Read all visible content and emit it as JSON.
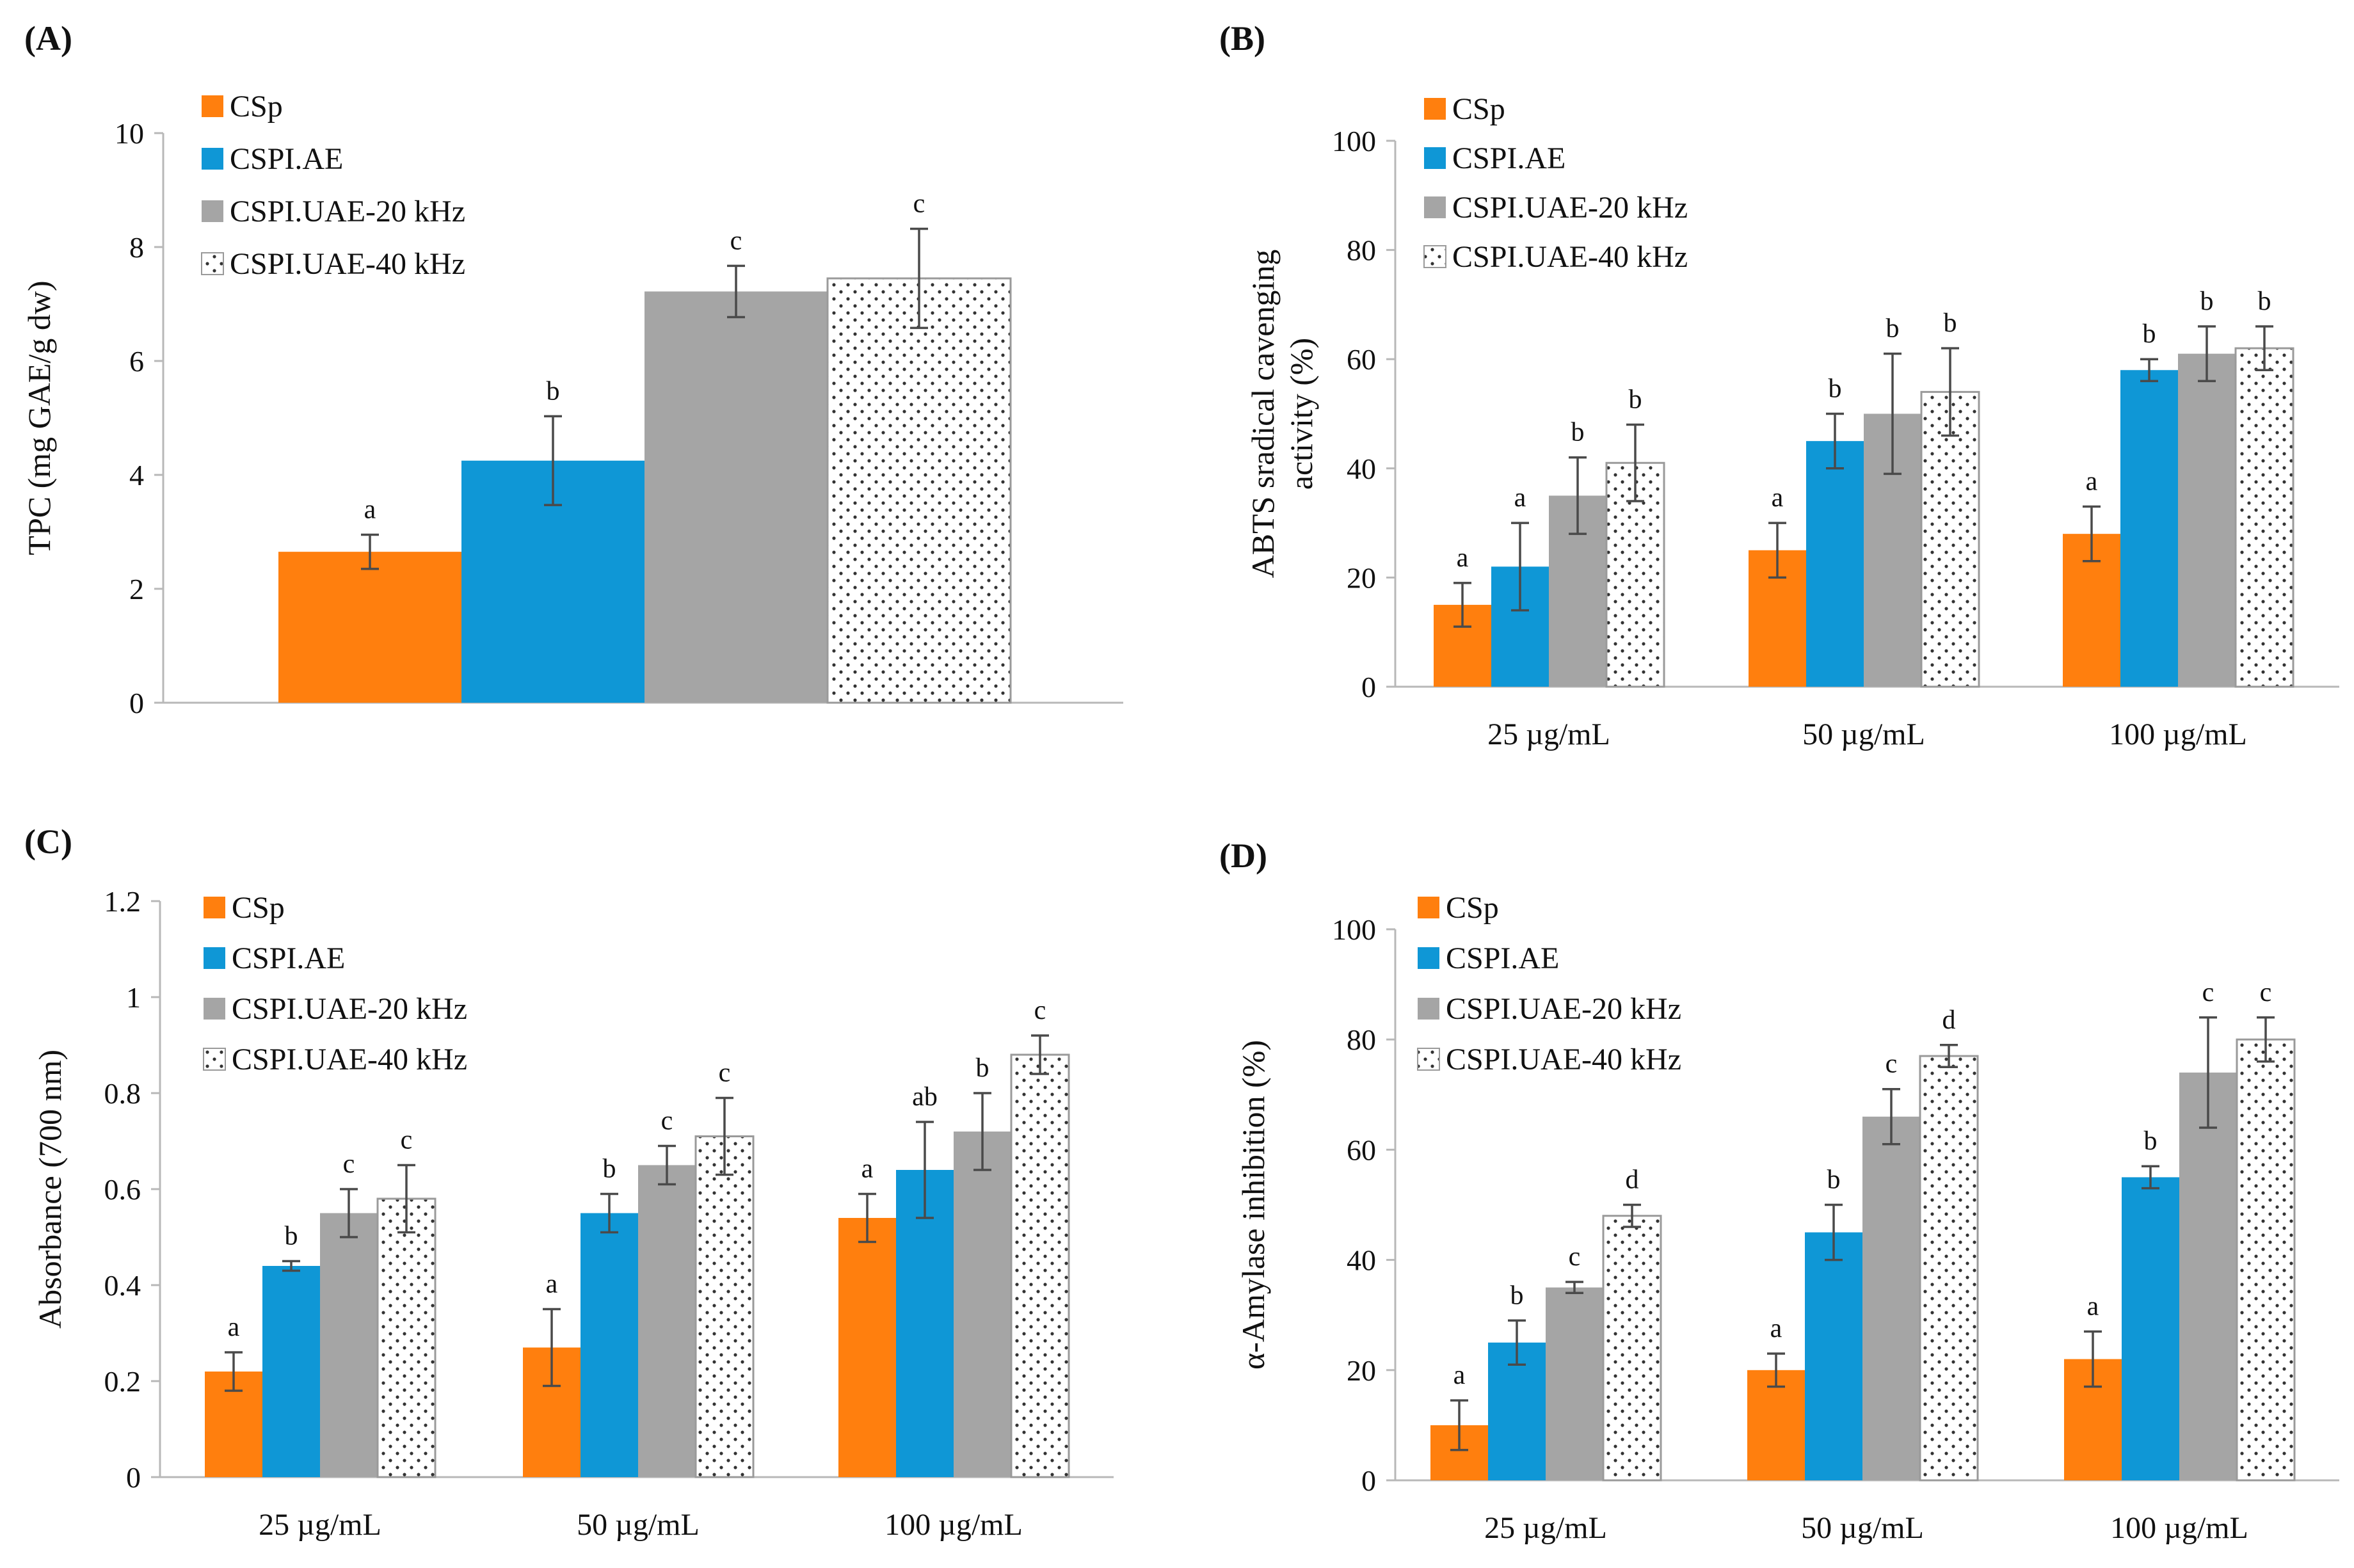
{
  "colors": {
    "CSp": "#FF7F0E",
    "CSPI.AE": "#0F97D6",
    "CSPI.UAE-20 kHz": "#A5A5A5",
    "CSPI.UAE-40 kHz": "#FFFFFF",
    "axis": "#B8B8B8",
    "text": "#111111"
  },
  "chart_data": [
    {
      "panel": "(A)",
      "type": "bar",
      "ylabel": "TPC (mg GAE/g dw)",
      "xlabel": "",
      "ylim": [
        0,
        10
      ],
      "yticks": [
        "0",
        "2",
        "4",
        "6",
        "8",
        "10"
      ],
      "categories": [
        ""
      ],
      "legend_position": "top-left",
      "series": [
        {
          "name": "CSp",
          "values": [
            2.65
          ],
          "errors": [
            0.3
          ],
          "letters": [
            "a"
          ]
        },
        {
          "name": "CSPI.AE",
          "values": [
            4.25
          ],
          "errors": [
            0.78
          ],
          "letters": [
            "b"
          ]
        },
        {
          "name": "CSPI.UAE-20 kHz",
          "values": [
            7.22
          ],
          "errors": [
            0.45
          ],
          "letters": [
            "c"
          ]
        },
        {
          "name": "CSPI.UAE-40 kHz",
          "values": [
            7.45
          ],
          "errors": [
            0.87
          ],
          "letters": [
            "c"
          ]
        }
      ]
    },
    {
      "panel": "(B)",
      "type": "bar",
      "ylabel": "ABTS sradical cavenging activity (%)",
      "xlabel": "",
      "ylim": [
        0,
        100
      ],
      "yticks": [
        "0",
        "20",
        "40",
        "60",
        "80",
        "100"
      ],
      "categories": [
        "25 µg/mL",
        "50 µg/mL",
        "100 µg/mL"
      ],
      "legend_position": "top-left",
      "series": [
        {
          "name": "CSp",
          "values": [
            15,
            25,
            28
          ],
          "errors": [
            4,
            5,
            5
          ],
          "letters": [
            "a",
            "a",
            "a"
          ]
        },
        {
          "name": "CSPI.AE",
          "values": [
            22,
            45,
            58
          ],
          "errors": [
            8,
            5,
            2
          ],
          "letters": [
            "a",
            "b",
            "b"
          ]
        },
        {
          "name": "CSPI.UAE-20 kHz",
          "values": [
            35,
            50,
            61
          ],
          "errors": [
            7,
            11,
            5
          ],
          "letters": [
            "b",
            "b",
            "b"
          ]
        },
        {
          "name": "CSPI.UAE-40 kHz",
          "values": [
            41,
            54,
            62
          ],
          "errors": [
            7,
            8,
            4
          ],
          "letters": [
            "b",
            "b",
            "b"
          ]
        }
      ]
    },
    {
      "panel": "(C)",
      "type": "bar",
      "ylabel": "Absorbance (700 nm)",
      "xlabel": "",
      "ylim": [
        0,
        1.2
      ],
      "yticks": [
        "0",
        "0.2",
        "0.4",
        "0.6",
        "0.8",
        "1",
        "1.2"
      ],
      "categories": [
        "25 µg/mL",
        "50 µg/mL",
        "100 µg/mL"
      ],
      "legend_position": "top-left",
      "series": [
        {
          "name": "CSp",
          "values": [
            0.22,
            0.27,
            0.54
          ],
          "errors": [
            0.04,
            0.08,
            0.05
          ],
          "letters": [
            "a",
            "a",
            "a"
          ]
        },
        {
          "name": "CSPI.AE",
          "values": [
            0.44,
            0.55,
            0.64
          ],
          "errors": [
            0.01,
            0.04,
            0.1
          ],
          "letters": [
            "b",
            "b",
            "ab"
          ]
        },
        {
          "name": "CSPI.UAE-20 kHz",
          "values": [
            0.55,
            0.65,
            0.72
          ],
          "errors": [
            0.05,
            0.04,
            0.08
          ],
          "letters": [
            "c",
            "c",
            "b"
          ]
        },
        {
          "name": "CSPI.UAE-40 kHz",
          "values": [
            0.58,
            0.71,
            0.88
          ],
          "errors": [
            0.07,
            0.08,
            0.04
          ],
          "letters": [
            "c",
            "c",
            "c"
          ]
        }
      ]
    },
    {
      "panel": "(D)",
      "type": "bar",
      "ylabel": "α-Amylase inhibition  (%)",
      "xlabel": "",
      "ylim": [
        0,
        100
      ],
      "yticks": [
        "0",
        "20",
        "40",
        "60",
        "80",
        "100"
      ],
      "categories": [
        "25 µg/mL",
        "50 µg/mL",
        "100 µg/mL"
      ],
      "legend_position": "top-left",
      "series": [
        {
          "name": "CSp",
          "values": [
            10,
            20,
            22
          ],
          "errors": [
            4.5,
            3,
            5
          ],
          "letters": [
            "a",
            "a",
            "a"
          ]
        },
        {
          "name": "CSPI.AE",
          "values": [
            25,
            45,
            55
          ],
          "errors": [
            4,
            5,
            2
          ],
          "letters": [
            "b",
            "b",
            "b"
          ]
        },
        {
          "name": "CSPI.UAE-20 kHz",
          "values": [
            35,
            66,
            74
          ],
          "errors": [
            1,
            5,
            10
          ],
          "letters": [
            "c",
            "c",
            "c"
          ]
        },
        {
          "name": "CSPI.UAE-40 kHz",
          "values": [
            48,
            77,
            80
          ],
          "errors": [
            2,
            2,
            4
          ],
          "letters": [
            "d",
            "d",
            "c"
          ]
        }
      ]
    }
  ]
}
